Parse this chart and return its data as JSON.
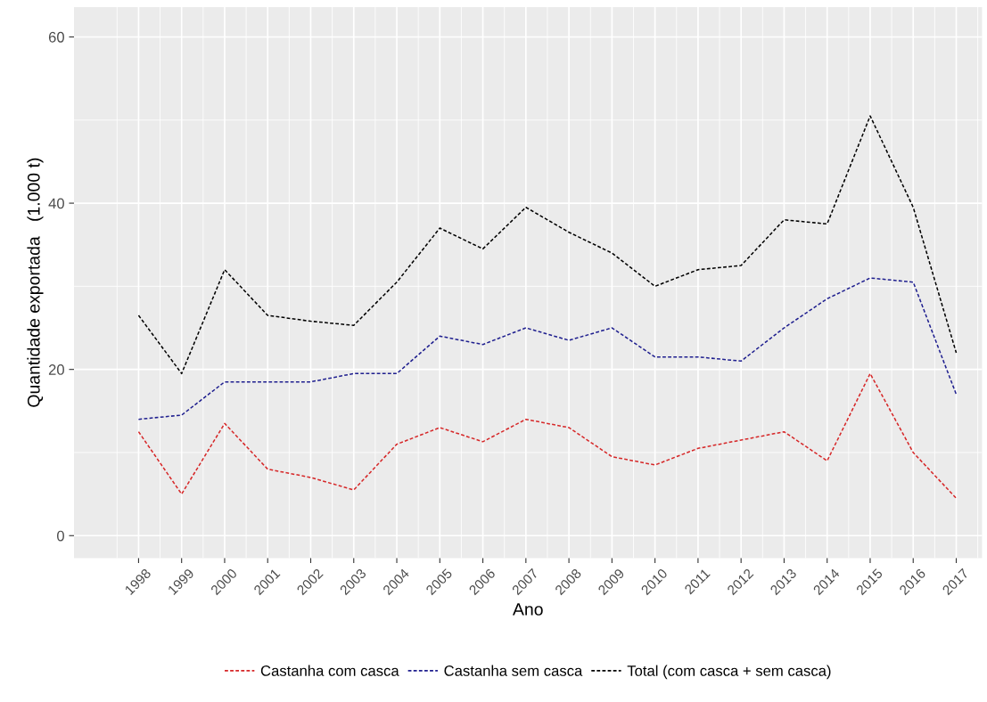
{
  "chart_data": {
    "type": "line",
    "xlabel": "Ano",
    "ylabel": "Quantidade exportada   (1.000 t)",
    "categories": [
      "1998",
      "1999",
      "2000",
      "2001",
      "2002",
      "2003",
      "2004",
      "2005",
      "2006",
      "2007",
      "2008",
      "2009",
      "2010",
      "2011",
      "2012",
      "2013",
      "2014",
      "2015",
      "2016",
      "2017"
    ],
    "series": [
      {
        "name": "Castanha com casca",
        "color": "#d62728",
        "values": [
          12.5,
          5,
          13.5,
          8,
          7,
          5.5,
          11,
          13,
          11.3,
          14,
          13,
          9.5,
          8.5,
          10.5,
          11.5,
          12.5,
          9,
          19.5,
          10,
          4.5
        ]
      },
      {
        "name": "Castanha sem casca",
        "color": "#1f1f8f",
        "values": [
          14,
          14.5,
          18.5,
          18.5,
          18.5,
          19.5,
          19.5,
          24,
          23,
          25,
          23.5,
          25,
          21.5,
          21.5,
          21,
          25,
          28.5,
          31,
          30.5,
          17
        ]
      },
      {
        "name": "Total (com casca + sem casca)",
        "color": "#000000",
        "values": [
          26.5,
          19.5,
          32,
          26.5,
          25.8,
          25.3,
          30.5,
          37,
          34.5,
          39.5,
          36.5,
          34,
          30,
          32,
          32.5,
          38,
          37.5,
          50.5,
          39.5,
          22
        ]
      }
    ],
    "ylim": [
      -2.7,
      63.6
    ],
    "yticks": [
      0,
      20,
      40,
      60
    ],
    "grid": true,
    "legend": "bottom",
    "line_style": "dashed",
    "marker": "none"
  }
}
